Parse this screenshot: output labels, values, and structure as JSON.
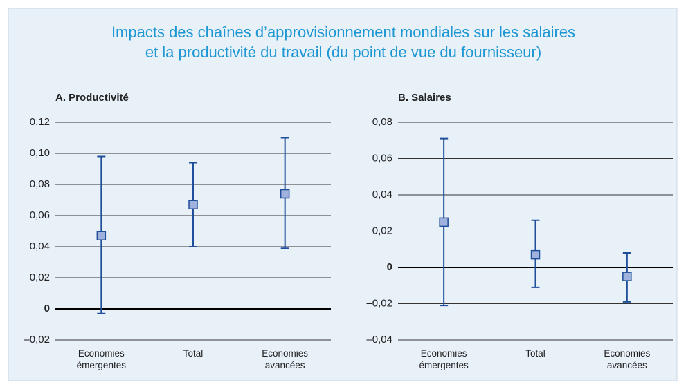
{
  "title": [
    "Impacts des chaînes d’approvisionnement mondiales sur les salaires",
    "et la productivité du travail (du point de vue du fournisseur)"
  ],
  "chart_data": [
    {
      "type": "errorbar",
      "title": "A. Productivité",
      "categories": [
        "Economies émergentes",
        "Total",
        "Economies avancées"
      ],
      "values": [
        0.047,
        0.067,
        0.074
      ],
      "lower": [
        -0.003,
        0.04,
        0.039
      ],
      "upper": [
        0.098,
        0.094,
        0.11
      ],
      "ylim": [
        -0.02,
        0.12
      ],
      "yticks": [
        {
          "value": -0.02,
          "label": "–0,02"
        },
        0,
        {
          "value": 0.02,
          "label": "0,02"
        },
        {
          "value": 0.04,
          "label": "0,04"
        },
        {
          "value": 0.06,
          "label": "0,06"
        },
        {
          "value": 0.08,
          "label": "0,08"
        },
        {
          "value": 0.1,
          "label": "0,10"
        },
        {
          "value": 0.12,
          "label": "0,12"
        }
      ],
      "color": "#1f4e9a",
      "marker_color": "#9fb1dd",
      "grid": true
    },
    {
      "type": "errorbar",
      "title": "B. Salaires",
      "categories": [
        "Economies émergentes",
        "Total",
        "Economies avancées"
      ],
      "values": [
        0.025,
        0.007,
        -0.005
      ],
      "lower": [
        -0.021,
        -0.011,
        -0.019
      ],
      "upper": [
        0.071,
        0.026,
        0.008
      ],
      "ylim": [
        -0.04,
        0.08
      ],
      "yticks": [
        {
          "value": -0.04,
          "label": "–0,04"
        },
        {
          "value": -0.02,
          "label": "–0,02"
        },
        0,
        {
          "value": 0.02,
          "label": "0,02"
        },
        {
          "value": 0.04,
          "label": "0,04"
        },
        {
          "value": 0.06,
          "label": "0,06"
        },
        {
          "value": 0.08,
          "label": "0,08"
        }
      ],
      "color": "#1f4e9a",
      "marker_color": "#9fb1dd",
      "grid": true
    }
  ]
}
